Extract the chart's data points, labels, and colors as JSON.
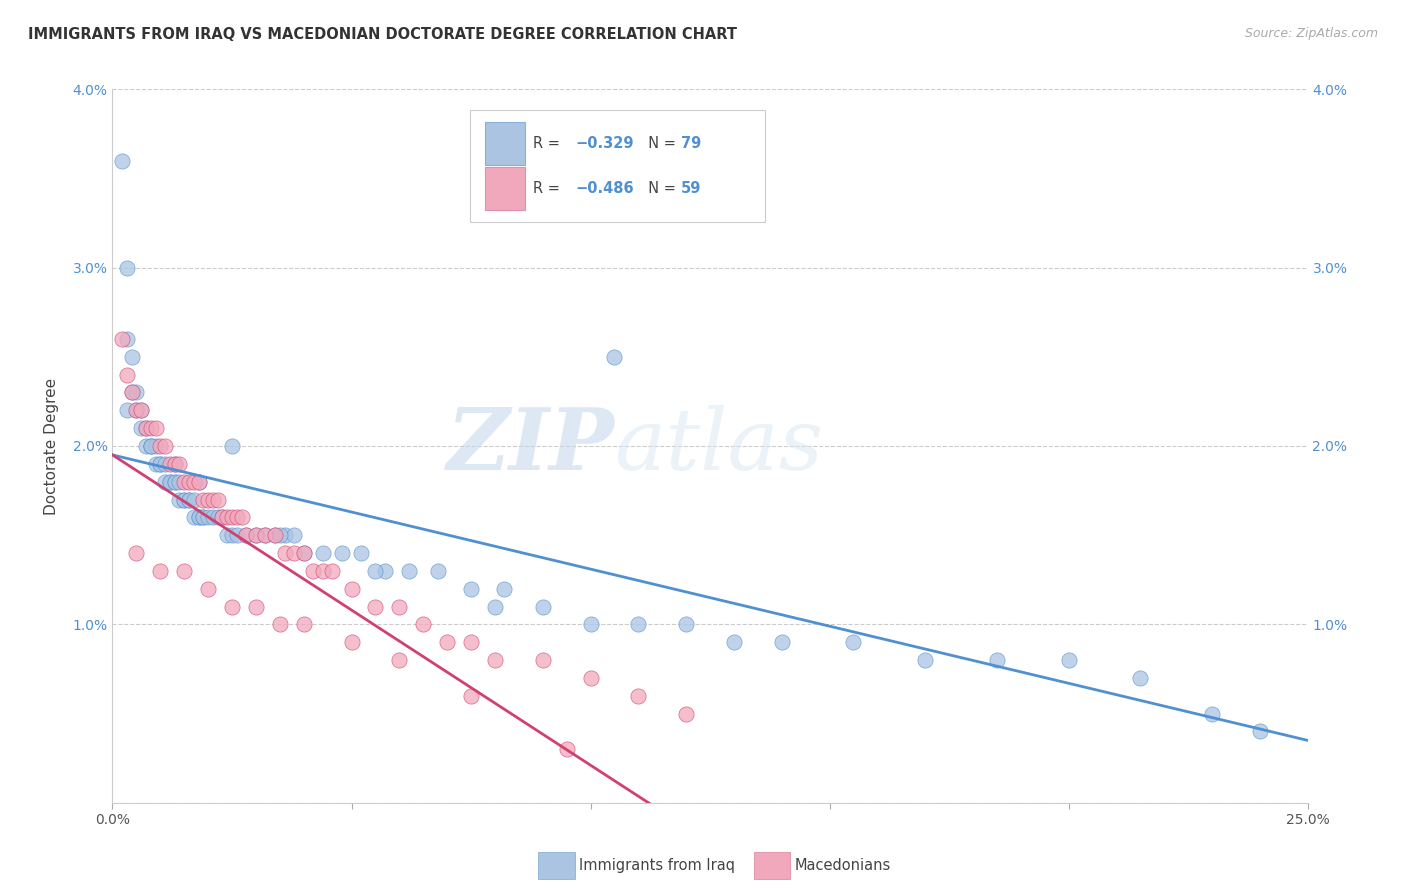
{
  "title": "IMMIGRANTS FROM IRAQ VS MACEDONIAN DOCTORATE DEGREE CORRELATION CHART",
  "source": "Source: ZipAtlas.com",
  "ylabel": "Doctorate Degree",
  "xlim": [
    0,
    0.25
  ],
  "ylim": [
    0,
    0.04
  ],
  "xticks": [
    0.0,
    0.05,
    0.1,
    0.15,
    0.2,
    0.25
  ],
  "yticks": [
    0.0,
    0.01,
    0.02,
    0.03,
    0.04
  ],
  "xtick_labels": [
    "0.0%",
    "",
    "",
    "",
    "",
    "25.0%"
  ],
  "ytick_labels_left": [
    "",
    "1.0%",
    "2.0%",
    "3.0%",
    "4.0%"
  ],
  "ytick_labels_right": [
    "",
    "1.0%",
    "2.0%",
    "3.0%",
    "4.0%"
  ],
  "legend_iraq_r": "R = −0.329",
  "legend_iraq_n": "N = 79",
  "legend_mac_r": "R = −0.486",
  "legend_mac_n": "N = 59",
  "legend_label_iraq": "Immigrants from Iraq",
  "legend_label_mac": "Macedonians",
  "color_iraq": "#aac4e2",
  "color_mac": "#f2a8bc",
  "color_iraq_line": "#5090d0",
  "color_mac_line": "#d04070",
  "watermark_zip": "ZIP",
  "watermark_atlas": "atlas",
  "title_fontsize": 10.5,
  "source_fontsize": 9,
  "iraq_scatter_x": [
    0.002,
    0.003,
    0.003,
    0.004,
    0.004,
    0.005,
    0.005,
    0.006,
    0.006,
    0.007,
    0.007,
    0.008,
    0.008,
    0.009,
    0.009,
    0.01,
    0.01,
    0.011,
    0.011,
    0.012,
    0.012,
    0.013,
    0.013,
    0.014,
    0.014,
    0.015,
    0.015,
    0.016,
    0.016,
    0.017,
    0.017,
    0.018,
    0.018,
    0.019,
    0.019,
    0.02,
    0.021,
    0.022,
    0.023,
    0.024,
    0.025,
    0.026,
    0.028,
    0.03,
    0.032,
    0.034,
    0.036,
    0.038,
    0.04,
    0.044,
    0.048,
    0.052,
    0.057,
    0.062,
    0.068,
    0.075,
    0.082,
    0.09,
    0.1,
    0.11,
    0.12,
    0.13,
    0.14,
    0.155,
    0.17,
    0.185,
    0.2,
    0.215,
    0.23,
    0.24,
    0.003,
    0.008,
    0.013,
    0.018,
    0.025,
    0.035,
    0.055,
    0.08,
    0.105
  ],
  "iraq_scatter_y": [
    0.036,
    0.03,
    0.026,
    0.025,
    0.023,
    0.023,
    0.022,
    0.022,
    0.021,
    0.021,
    0.02,
    0.02,
    0.02,
    0.02,
    0.019,
    0.019,
    0.019,
    0.019,
    0.018,
    0.018,
    0.018,
    0.018,
    0.018,
    0.018,
    0.017,
    0.017,
    0.017,
    0.017,
    0.017,
    0.017,
    0.016,
    0.016,
    0.016,
    0.016,
    0.016,
    0.016,
    0.016,
    0.016,
    0.016,
    0.015,
    0.015,
    0.015,
    0.015,
    0.015,
    0.015,
    0.015,
    0.015,
    0.015,
    0.014,
    0.014,
    0.014,
    0.014,
    0.013,
    0.013,
    0.013,
    0.012,
    0.012,
    0.011,
    0.01,
    0.01,
    0.01,
    0.009,
    0.009,
    0.009,
    0.008,
    0.008,
    0.008,
    0.007,
    0.005,
    0.004,
    0.022,
    0.02,
    0.019,
    0.018,
    0.02,
    0.015,
    0.013,
    0.011,
    0.025
  ],
  "mac_scatter_x": [
    0.002,
    0.003,
    0.004,
    0.005,
    0.006,
    0.007,
    0.008,
    0.009,
    0.01,
    0.011,
    0.012,
    0.013,
    0.014,
    0.015,
    0.016,
    0.017,
    0.018,
    0.019,
    0.02,
    0.021,
    0.022,
    0.023,
    0.024,
    0.025,
    0.026,
    0.027,
    0.028,
    0.03,
    0.032,
    0.034,
    0.036,
    0.038,
    0.04,
    0.042,
    0.044,
    0.046,
    0.05,
    0.055,
    0.06,
    0.065,
    0.07,
    0.075,
    0.08,
    0.09,
    0.1,
    0.11,
    0.12,
    0.005,
    0.01,
    0.015,
    0.02,
    0.025,
    0.03,
    0.035,
    0.04,
    0.05,
    0.06,
    0.075,
    0.095
  ],
  "mac_scatter_y": [
    0.026,
    0.024,
    0.023,
    0.022,
    0.022,
    0.021,
    0.021,
    0.021,
    0.02,
    0.02,
    0.019,
    0.019,
    0.019,
    0.018,
    0.018,
    0.018,
    0.018,
    0.017,
    0.017,
    0.017,
    0.017,
    0.016,
    0.016,
    0.016,
    0.016,
    0.016,
    0.015,
    0.015,
    0.015,
    0.015,
    0.014,
    0.014,
    0.014,
    0.013,
    0.013,
    0.013,
    0.012,
    0.011,
    0.011,
    0.01,
    0.009,
    0.009,
    0.008,
    0.008,
    0.007,
    0.006,
    0.005,
    0.014,
    0.013,
    0.013,
    0.012,
    0.011,
    0.011,
    0.01,
    0.01,
    0.009,
    0.008,
    0.006,
    0.003
  ],
  "iraq_line_x": [
    0.0,
    0.25
  ],
  "iraq_line_y": [
    0.0195,
    0.0035
  ],
  "mac_line_x": [
    0.0,
    0.115
  ],
  "mac_line_y": [
    0.0195,
    -0.0005
  ]
}
